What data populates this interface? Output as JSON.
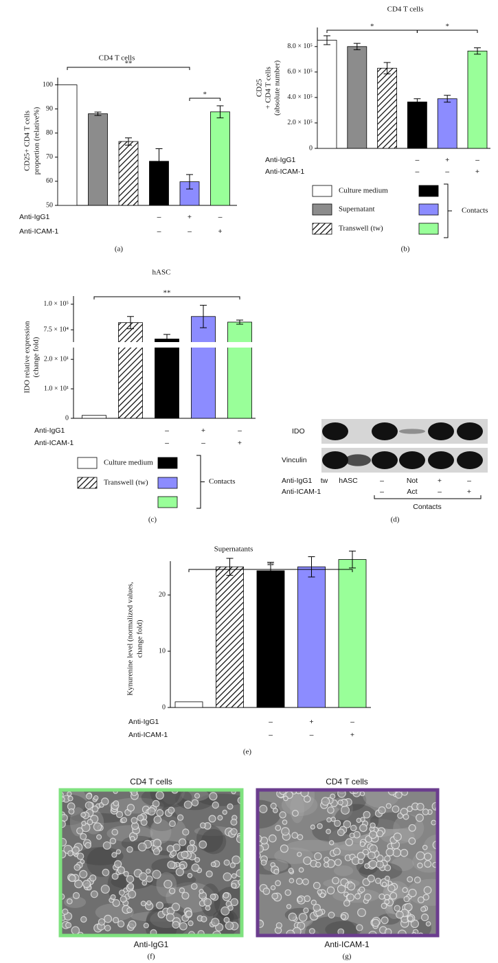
{
  "chart_data": [
    {
      "type": "bar",
      "panel": "(a)",
      "title": "CD4 T cells",
      "ylabel": [
        "CD25+ CD4 T cells",
        "proportion (relative%)"
      ],
      "values": [
        100,
        88,
        76.5,
        68.3,
        59.8,
        88.8
      ],
      "errors": [
        null,
        0.7,
        1.5,
        5.2,
        3.0,
        2.5
      ],
      "colors": [
        "#ffffff",
        "#8c8c8c",
        "#ffffff",
        "#000000",
        "#8c8cff",
        "#99ff99"
      ],
      "hatched": [
        false,
        false,
        true,
        false,
        false,
        false
      ],
      "ylim": [
        50,
        103
      ],
      "yticks": [
        50,
        60,
        70,
        80,
        90,
        100
      ],
      "conditions": [
        {
          "label": "Anti-IgG1",
          "marks": [
            null,
            null,
            null,
            "–",
            "+",
            "–"
          ]
        },
        {
          "label": "Anti-ICAM-1",
          "marks": [
            null,
            null,
            null,
            "–",
            "–",
            "+"
          ]
        }
      ],
      "significance": [
        {
          "bars": [
            0,
            4
          ],
          "label": "**"
        },
        {
          "bars": [
            4,
            5
          ],
          "label": "*"
        }
      ]
    },
    {
      "type": "bar",
      "panel": "(b)",
      "title": "CD4 T cells",
      "ylabel": [
        "CD25",
        "+ CD4 T cells",
        "(absolute number)"
      ],
      "values": [
        850000,
        800000,
        630000,
        365000,
        390000,
        765000
      ],
      "errors": [
        35000,
        25000,
        45000,
        25000,
        27000,
        25000
      ],
      "colors": [
        "#ffffff",
        "#8c8c8c",
        "#ffffff",
        "#000000",
        "#8c8cff",
        "#99ff99"
      ],
      "hatched": [
        false,
        false,
        true,
        false,
        false,
        false
      ],
      "ylim": [
        0,
        950000
      ],
      "yticks": [
        0,
        {
          "value": 200000,
          "label": "2.0 × 10⁵"
        },
        {
          "value": 400000,
          "label": "4.0 × 10⁵"
        },
        {
          "value": 600000,
          "label": "6.0 × 10⁵"
        },
        {
          "value": 800000,
          "label": "8.0 × 10⁵"
        }
      ],
      "conditions": [
        {
          "label": "Anti-IgG1",
          "marks": [
            null,
            null,
            null,
            "–",
            "+",
            "–"
          ]
        },
        {
          "label": "Anti-ICAM-1",
          "marks": [
            null,
            null,
            null,
            "–",
            "–",
            "+"
          ]
        }
      ],
      "significance": [
        {
          "bars": [
            0,
            3
          ],
          "label": "*"
        },
        {
          "bars": [
            3,
            5
          ],
          "label": "*"
        }
      ],
      "legend": {
        "items": [
          {
            "label": "Culture medium",
            "color": "#ffffff",
            "hatched": false
          },
          {
            "label": "Supernatant",
            "color": "#8c8c8c",
            "hatched": false
          },
          {
            "label": "Transwell (tw)",
            "color": "#ffffff",
            "hatched": true
          }
        ],
        "group_label": "Contacts",
        "group_colors": [
          "#000000",
          "#8c8cff",
          "#99ff99"
        ]
      }
    },
    {
      "type": "bar",
      "panel": "(c)",
      "title": "hASC",
      "ylabel": [
        "IDO relative expression",
        "(change fold)"
      ],
      "values": [
        1,
        82000,
        66000,
        88000,
        82500
      ],
      "errors": [
        null,
        6000,
        4500,
        11000,
        2000
      ],
      "colors": [
        "#ffffff",
        "#ffffff",
        "#000000",
        "#8c8cff",
        "#99ff99"
      ],
      "hatched": [
        false,
        true,
        false,
        false,
        false
      ],
      "axis_break": {
        "lower": [
          0,
          24
        ],
        "upper": [
          63000,
          108000
        ]
      },
      "yticks": [
        0,
        {
          "value": 10,
          "label": "1.0 × 10¹"
        },
        {
          "value": 20,
          "label": "2.0 × 10¹"
        },
        {
          "value": 75000,
          "label": "7.5 × 10⁴"
        },
        {
          "value": 100000,
          "label": "1.0 × 10⁵"
        }
      ],
      "conditions": [
        {
          "label": "Anti-IgG1",
          "marks": [
            null,
            null,
            "–",
            "+",
            "–"
          ]
        },
        {
          "label": "Anti-ICAM-1",
          "marks": [
            null,
            null,
            "–",
            "–",
            "+"
          ]
        }
      ],
      "significance": [
        {
          "bars": [
            0,
            4
          ],
          "label": "**"
        }
      ],
      "legend": {
        "items": [
          {
            "label": "Culture medium",
            "color": "#ffffff",
            "hatched": false
          },
          {
            "label": "Transwell (tw)",
            "color": "#ffffff",
            "hatched": true
          }
        ],
        "group_label": "Contacts",
        "group_colors": [
          "#000000",
          "#8c8cff",
          "#99ff99"
        ]
      }
    },
    {
      "type": "bar",
      "panel": "(e)",
      "title": "Supernatants",
      "ylabel": [
        "Kynurenine level (normalized values,",
        "change fold)"
      ],
      "values": [
        1,
        25,
        24.3,
        25,
        26.3
      ],
      "errors": [
        null,
        1.5,
        1.5,
        1.8,
        1.5
      ],
      "colors": [
        "#ffffff",
        "#ffffff",
        "#000000",
        "#8c8cff",
        "#99ff99"
      ],
      "hatched": [
        false,
        true,
        false,
        false,
        false
      ],
      "ylim": [
        0,
        26
      ],
      "yticks": [
        0,
        10,
        20
      ],
      "conditions": [
        {
          "label": "Anti-IgG1",
          "marks": [
            null,
            null,
            "–",
            "+",
            "–"
          ]
        },
        {
          "label": "Anti-ICAM-1",
          "marks": [
            null,
            null,
            "–",
            "–",
            "+"
          ]
        }
      ],
      "significance": [
        {
          "bars": [
            0,
            4
          ],
          "label": "**"
        }
      ]
    }
  ],
  "blot": {
    "panel": "(d)",
    "bands": [
      "IDO",
      "Vinculin"
    ],
    "rows": [
      {
        "label": "Anti-IgG1",
        "marks": [
          "tw",
          "hASC",
          "–",
          "Not",
          "+",
          "–"
        ]
      },
      {
        "label": "Anti-ICAM-1",
        "marks": [
          null,
          null,
          "–",
          "Act",
          "–",
          "+"
        ]
      }
    ],
    "group_label": "Contacts"
  },
  "images": [
    {
      "title": "CD4 T cells",
      "caption": "Anti-IgG1",
      "panel": "(f)",
      "border": "#7fe27f"
    },
    {
      "title": "CD4 T cells",
      "caption": "Anti-ICAM-1",
      "panel": "(g)",
      "border": "#6b3d8e"
    }
  ]
}
